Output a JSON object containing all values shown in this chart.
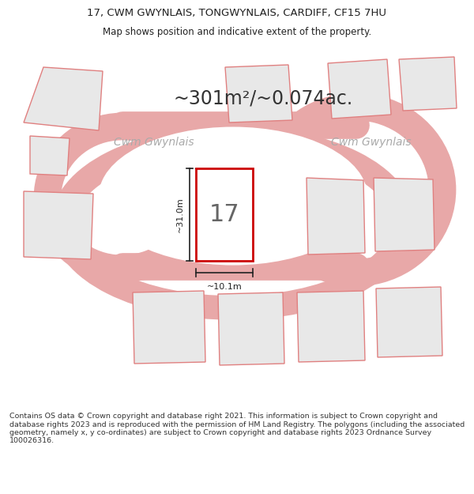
{
  "title_line1": "17, CWM GWYNLAIS, TONGWYNLAIS, CARDIFF, CF15 7HU",
  "title_line2": "Map shows position and indicative extent of the property.",
  "area_text": "~301m²/~0.074ac.",
  "street_label1": "Cwm Gwynlais",
  "street_label2": "Cwm Gwynlais",
  "property_number": "17",
  "dim_vertical": "~31.0m",
  "dim_horizontal": "~10.1m",
  "footer_text": "Contains OS data © Crown copyright and database right 2021. This information is subject to Crown copyright and database rights 2023 and is reproduced with the permission of HM Land Registry. The polygons (including the associated geometry, namely x, y co-ordinates) are subject to Crown copyright and database rights 2023 Ordnance Survey 100026316.",
  "bg_color": "#ffffff",
  "map_bg": "#ffffff",
  "plot_fill": "#ffffff",
  "plot_edge": "#cc0000",
  "neighbor_edge": "#e08080",
  "neighbor_fill": "#e8e8e8",
  "dim_line_color": "#222222",
  "text_color": "#222222",
  "area_text_color": "#333333",
  "street_text_color": "#aaaaaa",
  "footer_color": "#333333"
}
